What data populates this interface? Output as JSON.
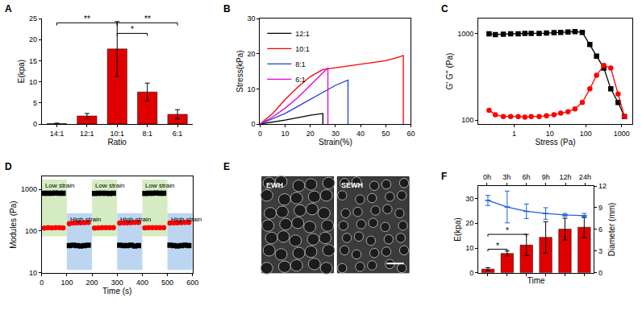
{
  "chart_data": [
    {
      "panel": "A",
      "type": "bar",
      "categories": [
        "14:1",
        "12:1",
        "10:1",
        "8:1",
        "6:1"
      ],
      "values": [
        0.1,
        1.9,
        17.8,
        7.6,
        2.3
      ],
      "errors": [
        0.1,
        0.6,
        6.5,
        2.1,
        1.1
      ],
      "color": "#e00000",
      "x_label": "Ratio",
      "y_label": "E(kpa)",
      "ylim": [
        0,
        25
      ],
      "yticks": [
        0,
        5,
        10,
        15,
        20,
        25
      ],
      "annotations": [
        {
          "from": "14:1",
          "to": "10:1",
          "y": 24,
          "text": "**"
        },
        {
          "from": "10:1",
          "to": "6:1",
          "y": 24,
          "text": "**"
        },
        {
          "from": "10:1",
          "to": "8:1",
          "y": 21.5,
          "text": "*"
        }
      ]
    },
    {
      "panel": "B",
      "type": "line",
      "x_label": "Strain(%)",
      "y_label": "Stress(kPa)",
      "xlim": [
        0,
        60
      ],
      "xticks": [
        0,
        10,
        20,
        30,
        40,
        50,
        60
      ],
      "ylim": [
        0,
        30
      ],
      "yticks": [
        0,
        10,
        20,
        30
      ],
      "legend": "top left",
      "series": [
        {
          "name": "12:1",
          "color": "#000000",
          "x": [
            0,
            5,
            10,
            15,
            20,
            25,
            25
          ],
          "values": [
            0,
            0.5,
            1.1,
            1.8,
            2.5,
            3.0,
            0
          ]
        },
        {
          "name": "10:1",
          "color": "#ff0000",
          "x": [
            0,
            5,
            10,
            15,
            20,
            25,
            30,
            35,
            40,
            45,
            50,
            55,
            57,
            57
          ],
          "values": [
            0,
            3,
            7,
            10.5,
            13.5,
            15.5,
            16,
            16.5,
            17,
            17.5,
            18,
            19,
            19.5,
            0
          ]
        },
        {
          "name": "8:1",
          "color": "#1f3fd6",
          "x": [
            0,
            5,
            10,
            15,
            20,
            25,
            30,
            35,
            35
          ],
          "values": [
            0,
            1.5,
            3,
            5,
            7,
            9,
            11,
            12.5,
            0
          ]
        },
        {
          "name": "6:1",
          "color": "#e000e0",
          "x": [
            0,
            5,
            10,
            15,
            20,
            25,
            27,
            27
          ],
          "values": [
            0,
            2,
            4.5,
            7.5,
            11,
            14.5,
            16,
            0
          ]
        }
      ]
    },
    {
      "panel": "C",
      "type": "scatter",
      "log": true,
      "x_label": "Stress (Pa)",
      "y_label": "G' G'' (Pa)",
      "xlim": [
        0.1,
        2000
      ],
      "xticks": [
        1,
        10,
        100,
        1000
      ],
      "ylim": [
        90,
        1500
      ],
      "yticks": [
        100,
        1000
      ],
      "x": [
        0.2,
        0.3,
        0.5,
        0.8,
        1.3,
        2,
        3,
        5,
        8,
        13,
        20,
        32,
        50,
        80,
        130,
        200,
        320,
        500,
        800,
        1200
      ],
      "series": [
        {
          "color": "#000000",
          "marker": "square",
          "line_style": "solid",
          "values": [
            1000,
            980,
            990,
            1000,
            1000,
            1010,
            1010,
            1010,
            1020,
            1030,
            1040,
            1050,
            1060,
            1040,
            750,
            550,
            400,
            230,
            160,
            110
          ]
        },
        {
          "color": "#ff0000",
          "marker": "circle",
          "line_style": "solid",
          "values": [
            130,
            115,
            110,
            110,
            110,
            108,
            110,
            110,
            112,
            115,
            120,
            125,
            135,
            160,
            230,
            330,
            430,
            400,
            200,
            110
          ]
        }
      ]
    },
    {
      "panel": "D",
      "type": "scatter",
      "log": "y",
      "x_label": "Time (s)",
      "y_label": "Modules (Pa)",
      "xlim": [
        0,
        600
      ],
      "xticks": [
        0,
        100,
        200,
        300,
        400,
        500,
        600
      ],
      "ylim": [
        10,
        2000
      ],
      "yticks": [
        10,
        100,
        1000
      ],
      "regions": [
        {
          "x0": 0,
          "x1": 100,
          "label": "Low strain",
          "color": "#d5ecc2"
        },
        {
          "x0": 100,
          "x1": 200,
          "label": "High strain",
          "color": "#bcd6f2"
        },
        {
          "x0": 200,
          "x1": 300,
          "label": "Low strain",
          "color": "#d5ecc2"
        },
        {
          "x0": 300,
          "x1": 400,
          "label": "High strain",
          "color": "#bcd6f2"
        },
        {
          "x0": 400,
          "x1": 500,
          "label": "Low strain",
          "color": "#d5ecc2"
        },
        {
          "x0": 500,
          "x1": 600,
          "label": "High strain",
          "color": "#bcd6f2"
        }
      ],
      "x": [
        10,
        25,
        40,
        55,
        70,
        85,
        110,
        125,
        140,
        155,
        170,
        185,
        210,
        225,
        240,
        255,
        270,
        285,
        310,
        325,
        340,
        355,
        370,
        385,
        410,
        425,
        440,
        455,
        470,
        485,
        510,
        525,
        540,
        555,
        570,
        585
      ],
      "series": [
        {
          "color": "#000000",
          "marker": "square",
          "values": [
            800,
            805,
            800,
            810,
            805,
            800,
            45,
            46,
            45,
            44,
            45,
            46,
            790,
            800,
            805,
            800,
            795,
            800,
            46,
            45,
            45,
            46,
            44,
            45,
            795,
            800,
            805,
            810,
            800,
            805,
            46,
            45,
            44,
            45,
            46,
            45
          ]
        },
        {
          "color": "#ff0000",
          "marker": "circle",
          "values": [
            118,
            120,
            119,
            121,
            120,
            119,
            150,
            155,
            157,
            158,
            159,
            160,
            118,
            119,
            120,
            120,
            121,
            120,
            155,
            157,
            158,
            159,
            160,
            160,
            119,
            120,
            120,
            121,
            120,
            121,
            156,
            158,
            158,
            159,
            160,
            160
          ]
        }
      ]
    },
    {
      "panel": "E",
      "type": "image",
      "images": [
        {
          "label": "EWH"
        },
        {
          "label": "SEWH"
        }
      ]
    },
    {
      "panel": "F",
      "type": "bar",
      "categories": [
        "0h",
        "3h",
        "6h",
        "9h",
        "12h",
        "24h"
      ],
      "x_label": "Time",
      "y_label": "E(kpa)",
      "y2_label": "Diameter (mm)",
      "ylim": [
        0,
        35
      ],
      "yticks": [
        0,
        10,
        20,
        30
      ],
      "y2lim": [
        0,
        12
      ],
      "y2ticks": [
        0,
        3,
        6,
        9,
        12
      ],
      "series": [
        {
          "type": "bar",
          "color": "#e00000",
          "values": [
            1.5,
            7.8,
            11.2,
            14.3,
            17.6,
            18.4
          ],
          "errors": [
            0.6,
            1.0,
            4.3,
            6.3,
            4.4,
            4.2
          ]
        },
        {
          "type": "line",
          "axis": "y2",
          "color": "#1f5fd6",
          "marker": "dash",
          "values": [
            10.0,
            9.1,
            8.5,
            8.2,
            8.0,
            7.9
          ],
          "errors": [
            0.7,
            2.2,
            1.0,
            0.8,
            0.2,
            0.3
          ]
        }
      ],
      "annotations": [
        {
          "from": "0h",
          "to": "3h",
          "y": 9.5,
          "text": "*"
        },
        {
          "from": "0h",
          "to": "6h",
          "y": 15.5,
          "text": "*"
        }
      ]
    }
  ]
}
